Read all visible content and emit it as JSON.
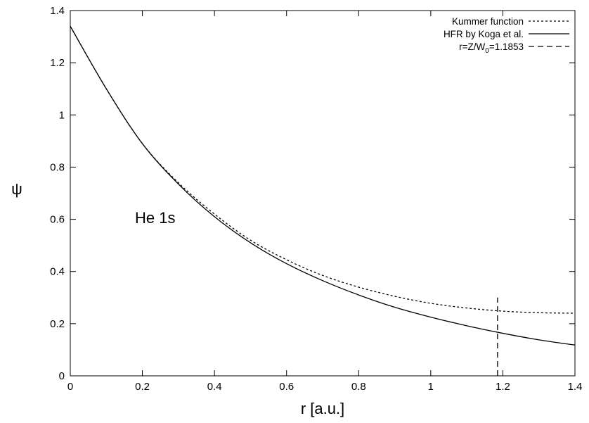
{
  "chart_data": {
    "type": "line",
    "xlabel": "r [a.u.]",
    "ylabel": "ψ",
    "xlim": [
      0,
      1.4
    ],
    "ylim": [
      0,
      1.4
    ],
    "x_ticks": [
      "0",
      "0.2",
      "0.4",
      "0.6",
      "0.8",
      "1",
      "1.2",
      "1.4"
    ],
    "y_ticks": [
      "0",
      "0.2",
      "0.4",
      "0.6",
      "0.8",
      "1",
      "1.2",
      "1.4"
    ],
    "grid": false,
    "legend_position": "top-right",
    "annotation": "He 1s",
    "series": [
      {
        "name": "Kummer function",
        "style": "dotted",
        "x": [
          0,
          0.1,
          0.2,
          0.3,
          0.4,
          0.5,
          0.6,
          0.7,
          0.8,
          0.9,
          1.0,
          1.1,
          1.2,
          1.3,
          1.4
        ],
        "y": [
          1.34,
          1.1,
          0.89,
          0.74,
          0.62,
          0.52,
          0.445,
          0.385,
          0.34,
          0.305,
          0.278,
          0.26,
          0.248,
          0.242,
          0.24
        ]
      },
      {
        "name": "HFR by Koga et al.",
        "style": "solid",
        "x": [
          0,
          0.1,
          0.2,
          0.3,
          0.4,
          0.5,
          0.6,
          0.7,
          0.8,
          0.9,
          1.0,
          1.1,
          1.2,
          1.3,
          1.4
        ],
        "y": [
          1.34,
          1.1,
          0.89,
          0.735,
          0.61,
          0.51,
          0.43,
          0.365,
          0.31,
          0.263,
          0.225,
          0.192,
          0.163,
          0.138,
          0.118
        ]
      },
      {
        "name_prefix": "r=Z/W",
        "name_sub": "0",
        "name_suffix": "=1.1853",
        "style": "dashed",
        "x": [
          1.1853,
          1.1853
        ],
        "y": [
          0,
          0.3
        ]
      }
    ]
  }
}
